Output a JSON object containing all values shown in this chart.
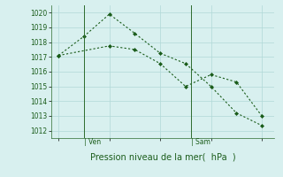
{
  "line1_x": [
    0,
    1,
    2,
    3,
    4,
    5,
    6,
    7,
    8
  ],
  "line1_y": [
    1017.1,
    1018.4,
    1019.9,
    1018.6,
    1017.25,
    1016.55,
    1015.0,
    1013.2,
    1012.35
  ],
  "line2_x": [
    0,
    2,
    3,
    4,
    5,
    6,
    7,
    8
  ],
  "line2_y": [
    1017.1,
    1017.75,
    1017.5,
    1016.55,
    1015.0,
    1015.8,
    1015.3,
    1013.0
  ],
  "line_color": "#1a5c1a",
  "bg_color": "#d8f0ef",
  "grid_color": "#b0d8d8",
  "ylim": [
    1011.5,
    1020.5
  ],
  "yticks": [
    1012,
    1013,
    1014,
    1015,
    1016,
    1017,
    1018,
    1019,
    1020
  ],
  "xlim": [
    -0.3,
    8.5
  ],
  "ven_x": 1.0,
  "sam_x": 5.2,
  "xlabel": "Pression niveau de la mer(  hPa  )",
  "tick_fontsize": 5.5,
  "label_fontsize": 7.0,
  "vline_color": "#2d6b2d"
}
